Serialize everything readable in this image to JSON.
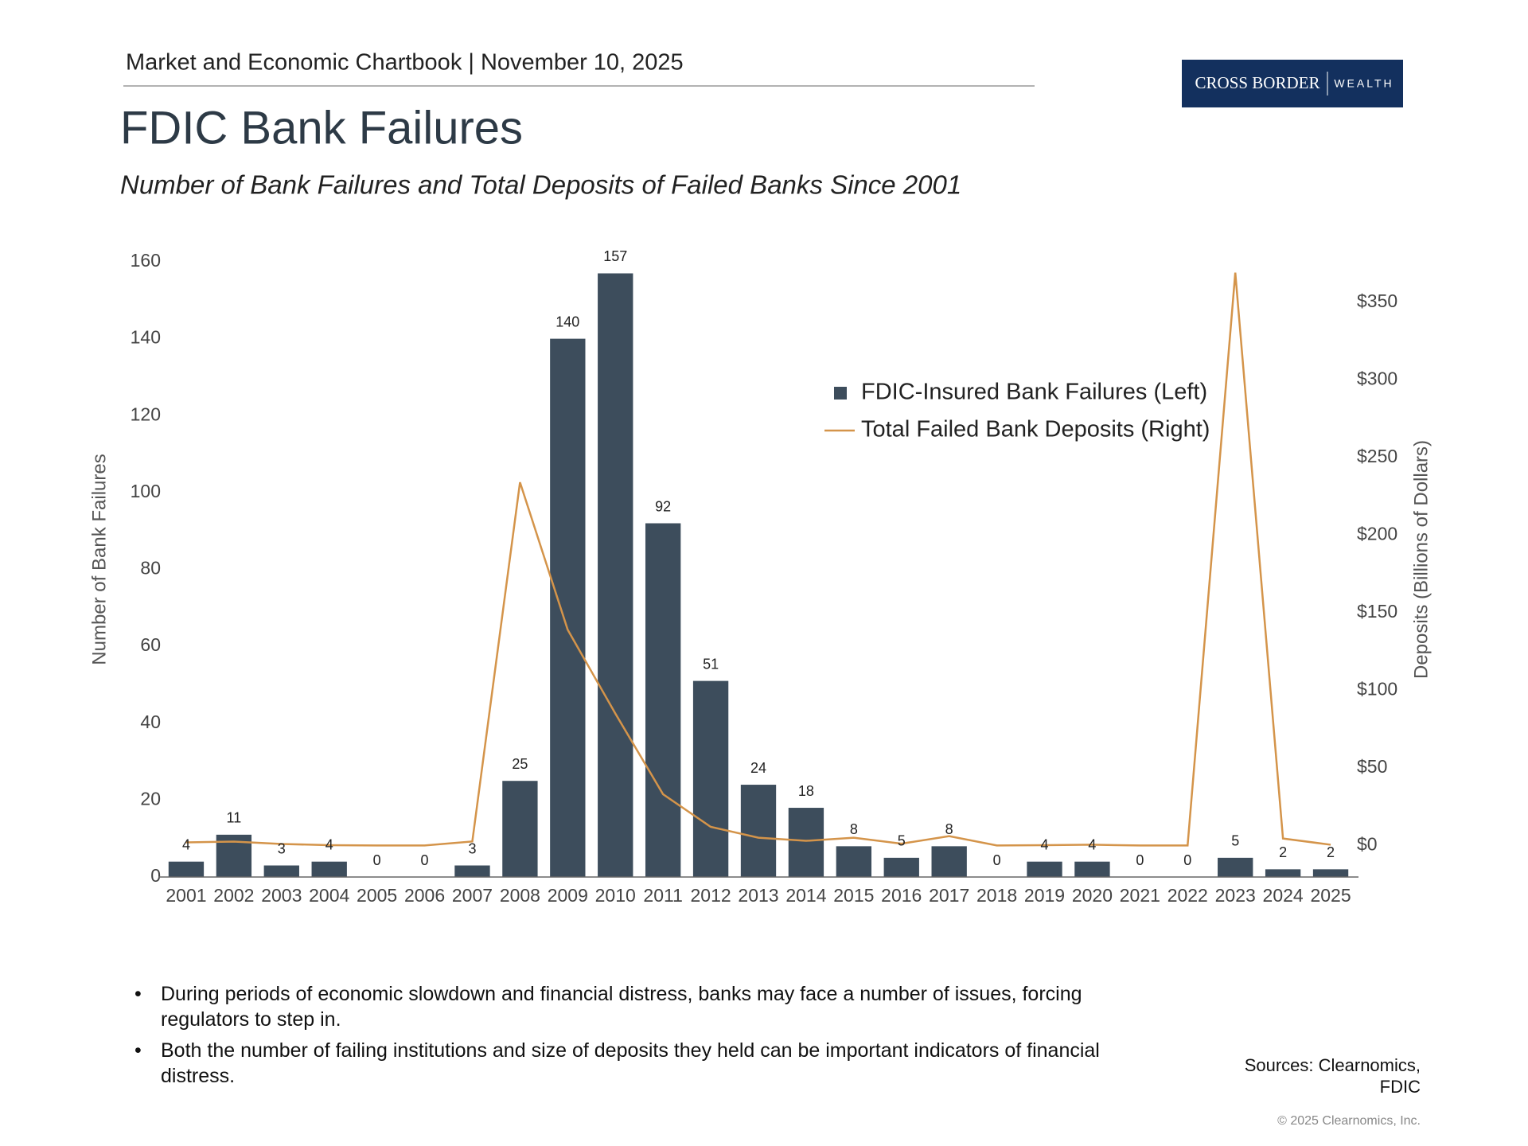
{
  "header": {
    "chartbook": "Market and Economic Chartbook | November 10, 2025",
    "logo_brand": "CROSS BORDER",
    "logo_tag": "WEALTH"
  },
  "chart_data": {
    "type": "bar",
    "title": "FDIC Bank Failures",
    "subtitle": "Number of Bank Failures and Total Deposits of Failed Banks Since 2001",
    "y_label": "Number of Bank Failures",
    "y2_label": "Deposits (Billions of Dollars)",
    "categories": [
      "2001",
      "2002",
      "2003",
      "2004",
      "2005",
      "2006",
      "2007",
      "2008",
      "2009",
      "2010",
      "2011",
      "2012",
      "2013",
      "2014",
      "2015",
      "2016",
      "2017",
      "2018",
      "2019",
      "2020",
      "2021",
      "2022",
      "2023",
      "2024",
      "2025"
    ],
    "series": [
      {
        "name": "FDIC-Insured Bank Failures (Left)",
        "type": "bar",
        "color": "#3d4d5c",
        "values": [
          4,
          11,
          3,
          4,
          0,
          0,
          3,
          25,
          140,
          157,
          92,
          51,
          24,
          18,
          8,
          5,
          8,
          0,
          4,
          4,
          0,
          0,
          5,
          2,
          2
        ]
      },
      {
        "name": "Total Failed Bank Deposits (Right)",
        "type": "line",
        "axis": "y2",
        "color": "#d4944a",
        "values": [
          2,
          2.5,
          1,
          0.2,
          0,
          0,
          2.6,
          234,
          139,
          85,
          33,
          12,
          5,
          3,
          5,
          1.2,
          6,
          0,
          0.2,
          0.5,
          0,
          0,
          369,
          4.5,
          0.5
        ]
      }
    ],
    "ylim": [
      0,
      160
    ],
    "yticks": [
      0,
      20,
      40,
      60,
      80,
      100,
      120,
      140,
      160
    ],
    "y2lim": [
      -20.3,
      376
    ],
    "y2ticks": [
      {
        "value": 0,
        "label": "$0"
      },
      {
        "value": 50,
        "label": "$50"
      },
      {
        "value": 100,
        "label": "$100"
      },
      {
        "value": 150,
        "label": "$150"
      },
      {
        "value": 200,
        "label": "$200"
      },
      {
        "value": 250,
        "label": "$250"
      },
      {
        "value": 300,
        "label": "$300"
      },
      {
        "value": 350,
        "label": "$350"
      }
    ]
  },
  "bullets": [
    "During periods of economic slowdown and financial distress, banks may face a number of issues, forcing regulators to step in.",
    "Both the number of failing institutions and size of deposits they held can be important indicators of financial distress."
  ],
  "sources": "Sources: Clearnomics, FDIC",
  "copyright": "© 2025 Clearnomics, Inc."
}
